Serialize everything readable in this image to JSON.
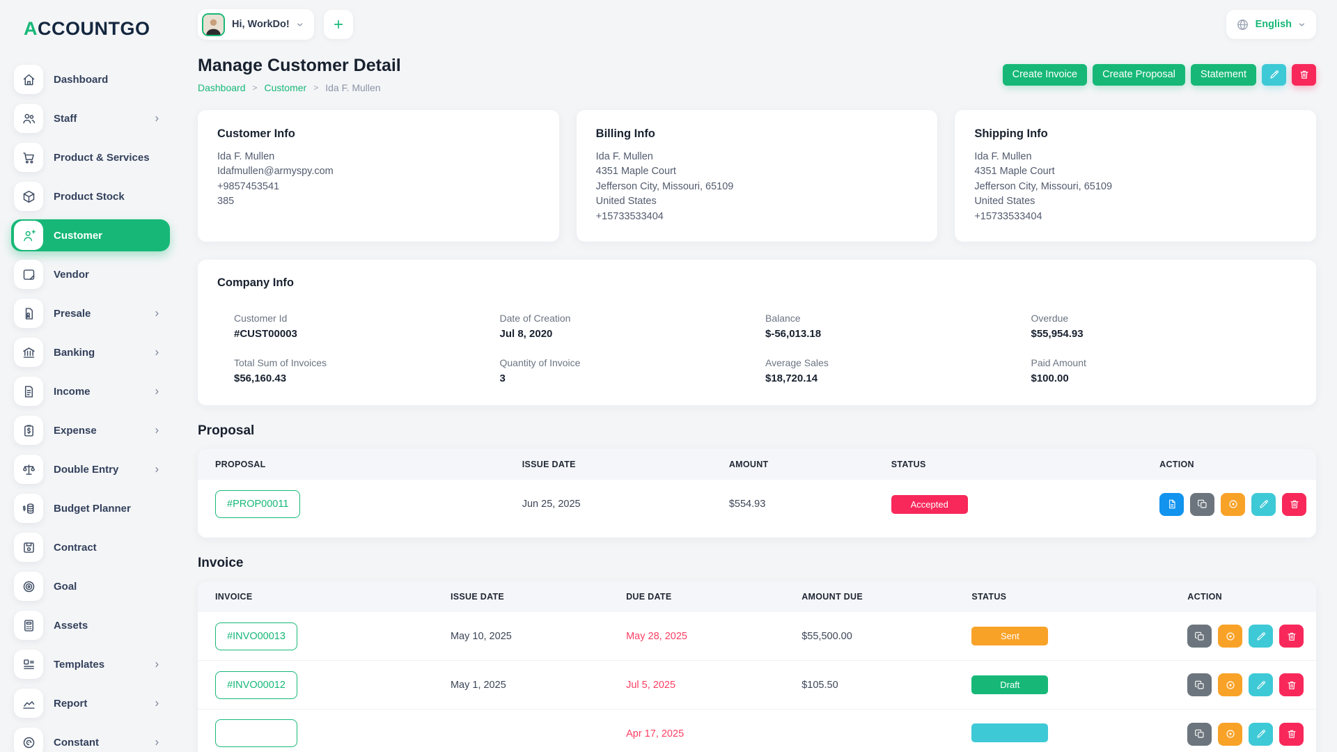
{
  "brand": {
    "logo_first": "A",
    "logo_rest": "CCOUNTGO"
  },
  "topbar": {
    "greeting": "Hi, WorkDo!",
    "add_label": "+",
    "language": "English"
  },
  "sidebar": {
    "items": [
      {
        "label": "Dashboard",
        "icon": "home-icon",
        "active": false,
        "chevron": false
      },
      {
        "label": "Staff",
        "icon": "staff-icon",
        "active": false,
        "chevron": true
      },
      {
        "label": "Product & Services",
        "icon": "cart-icon",
        "active": false,
        "chevron": false
      },
      {
        "label": "Product Stock",
        "icon": "cube-icon",
        "active": false,
        "chevron": false
      },
      {
        "label": "Customer",
        "icon": "user-plus-icon",
        "active": true,
        "chevron": false
      },
      {
        "label": "Vendor",
        "icon": "vendor-icon",
        "active": false,
        "chevron": false
      },
      {
        "label": "Presale",
        "icon": "presale-icon",
        "active": false,
        "chevron": true
      },
      {
        "label": "Banking",
        "icon": "bank-icon",
        "active": false,
        "chevron": true
      },
      {
        "label": "Income",
        "icon": "income-icon",
        "active": false,
        "chevron": true
      },
      {
        "label": "Expense",
        "icon": "expense-icon",
        "active": false,
        "chevron": true
      },
      {
        "label": "Double Entry",
        "icon": "scale-icon",
        "active": false,
        "chevron": true
      },
      {
        "label": "Budget Planner",
        "icon": "budget-icon",
        "active": false,
        "chevron": false
      },
      {
        "label": "Contract",
        "icon": "contract-icon",
        "active": false,
        "chevron": false
      },
      {
        "label": "Goal",
        "icon": "goal-icon",
        "active": false,
        "chevron": false
      },
      {
        "label": "Assets",
        "icon": "assets-icon",
        "active": false,
        "chevron": false
      },
      {
        "label": "Templates",
        "icon": "templates-icon",
        "active": false,
        "chevron": true
      },
      {
        "label": "Report",
        "icon": "report-icon",
        "active": false,
        "chevron": true
      },
      {
        "label": "Constant",
        "icon": "constant-icon",
        "active": false,
        "chevron": true
      }
    ]
  },
  "page": {
    "title": "Manage Customer Detail",
    "breadcrumb": [
      {
        "label": "Dashboard",
        "link": true
      },
      {
        "label": "Customer",
        "link": true
      },
      {
        "label": "Ida F. Mullen",
        "link": false
      }
    ],
    "buttons": {
      "create_invoice": "Create Invoice",
      "create_proposal": "Create Proposal",
      "statement": "Statement"
    }
  },
  "cards": [
    {
      "title": "Customer Info",
      "lines": [
        "Ida F. Mullen",
        "Idafmullen@armyspy.com",
        "+9857453541",
        "385"
      ]
    },
    {
      "title": "Billing Info",
      "lines": [
        "Ida F. Mullen",
        "4351 Maple Court",
        "Jefferson City, Missouri, 65109",
        "United States",
        "+15733533404"
      ]
    },
    {
      "title": "Shipping Info",
      "lines": [
        "Ida F. Mullen",
        "4351 Maple Court",
        "Jefferson City, Missouri, 65109",
        "United States",
        "+15733533404"
      ]
    }
  ],
  "company_info": {
    "title": "Company Info",
    "fields": [
      {
        "label": "Customer Id",
        "value": "#CUST00003"
      },
      {
        "label": "Date of Creation",
        "value": "Jul 8, 2020"
      },
      {
        "label": "Balance",
        "value": "$-56,013.18"
      },
      {
        "label": "Overdue",
        "value": "$55,954.93"
      },
      {
        "label": "Total Sum of Invoices",
        "value": "$56,160.43"
      },
      {
        "label": "Quantity of Invoice",
        "value": "3"
      },
      {
        "label": "Average Sales",
        "value": "$18,720.14"
      },
      {
        "label": "Paid Amount",
        "value": "$100.00"
      }
    ]
  },
  "proposal": {
    "heading": "Proposal",
    "columns": [
      "PROPOSAL",
      "ISSUE DATE",
      "AMOUNT",
      "STATUS",
      "ACTION"
    ],
    "rows": [
      {
        "number": "#PROP00011",
        "issue_date": "Jun 25, 2025",
        "amount": "$554.93",
        "status": {
          "label": "Accepted",
          "color": "#f8285a"
        },
        "actions": [
          "document",
          "duplicate",
          "view",
          "edit",
          "delete"
        ]
      }
    ]
  },
  "invoice": {
    "heading": "Invoice",
    "columns": [
      "INVOICE",
      "ISSUE DATE",
      "DUE DATE",
      "AMOUNT DUE",
      "STATUS",
      "ACTION"
    ],
    "rows": [
      {
        "number": "#INVO00013",
        "issue_date": "May 10, 2025",
        "due_date": "May 28, 2025",
        "amount": "$55,500.00",
        "status": {
          "label": "Sent",
          "color": "#f9a228"
        },
        "actions": [
          "duplicate",
          "view",
          "edit",
          "delete"
        ]
      },
      {
        "number": "#INVO00012",
        "issue_date": "May 1, 2025",
        "due_date": "Jul 5, 2025",
        "amount": "$105.50",
        "status": {
          "label": "Draft",
          "color": "#17b877"
        },
        "actions": [
          "duplicate",
          "view",
          "edit",
          "delete"
        ]
      },
      {
        "number": "",
        "issue_date": "",
        "due_date": "Apr 17, 2025",
        "amount": "",
        "status": {
          "label": "",
          "color": "#3ec9d6"
        },
        "actions": [
          "duplicate",
          "view",
          "edit",
          "delete"
        ]
      }
    ]
  },
  "colors": {
    "accent": "#17b877",
    "page_bg": "#f4f5f7",
    "pink": "#f8285a",
    "cyan": "#3ec9d6",
    "orange": "#f9a228",
    "blue": "#1293ee",
    "gray_btn": "#6c757d",
    "due": "#fb3e63"
  }
}
